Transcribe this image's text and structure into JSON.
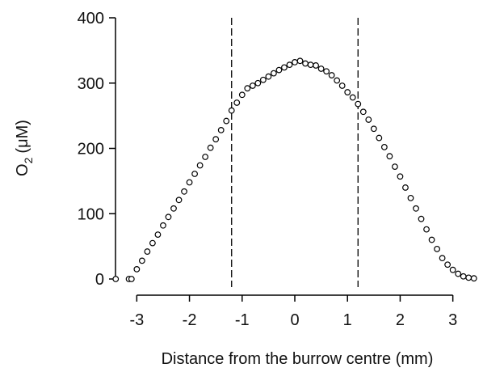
{
  "chart_data": {
    "type": "scatter",
    "xlabel": "Distance from the burrow centre (mm)",
    "ylabel_parts": [
      "O",
      "2",
      "(μM)"
    ],
    "x": [
      -3.4,
      -3.15,
      -3.1,
      -3.0,
      -2.9,
      -2.8,
      -2.7,
      -2.6,
      -2.5,
      -2.4,
      -2.3,
      -2.2,
      -2.1,
      -2.0,
      -1.9,
      -1.8,
      -1.7,
      -1.6,
      -1.5,
      -1.4,
      -1.3,
      -1.2,
      -1.1,
      -1.0,
      -0.9,
      -0.8,
      -0.7,
      -0.6,
      -0.5,
      -0.4,
      -0.3,
      -0.2,
      -0.1,
      0.0,
      0.1,
      0.2,
      0.3,
      0.4,
      0.5,
      0.6,
      0.7,
      0.8,
      0.9,
      1.0,
      1.1,
      1.2,
      1.3,
      1.4,
      1.5,
      1.6,
      1.7,
      1.8,
      1.9,
      2.0,
      2.1,
      2.2,
      2.3,
      2.4,
      2.5,
      2.6,
      2.7,
      2.8,
      2.9,
      3.0,
      3.1,
      3.2,
      3.3,
      3.4
    ],
    "values": [
      0,
      0,
      0,
      15,
      28,
      42,
      55,
      68,
      82,
      95,
      108,
      121,
      134,
      148,
      161,
      174,
      187,
      201,
      214,
      228,
      242,
      258,
      270,
      282,
      292,
      296,
      300,
      305,
      310,
      315,
      320,
      324,
      328,
      332,
      334,
      330,
      328,
      327,
      322,
      318,
      312,
      304,
      296,
      286,
      278,
      268,
      256,
      244,
      230,
      216,
      202,
      188,
      172,
      157,
      140,
      124,
      108,
      92,
      76,
      60,
      46,
      32,
      22,
      14,
      8,
      4,
      2,
      1
    ],
    "marker_fill": "#ffffff",
    "marker_stroke": "#000000",
    "xlim": [
      -3.45,
      3.45
    ],
    "xticks": [
      -3,
      -2,
      -1,
      0,
      1,
      2,
      3
    ],
    "ylim": [
      0,
      400
    ],
    "yticks": [
      0,
      100,
      200,
      300,
      400
    ],
    "vlines": [
      -1.2,
      1.2
    ]
  }
}
